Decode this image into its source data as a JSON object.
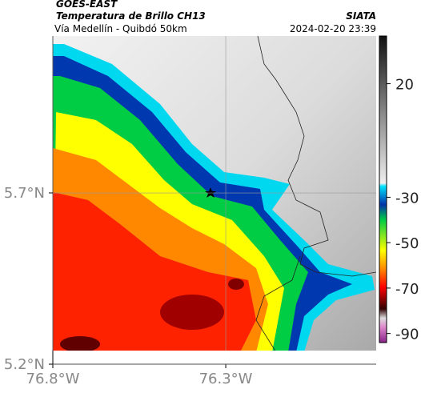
{
  "header": {
    "source": "GOES-EAST",
    "product": "Temperatura de Brillo CH13",
    "region": "Vía Medellín - Quibdó 50km",
    "agency": "SIATA",
    "timestamp": "2024-02-20 23:39"
  },
  "map": {
    "xlim": [
      -76.8,
      -75.865
    ],
    "ylim": [
      5.2,
      6.158
    ],
    "xticks": [
      {
        "value": -76.8,
        "label": "76.8°W"
      },
      {
        "value": -76.3,
        "label": "76.3°W"
      }
    ],
    "yticks": [
      {
        "value": 5.2,
        "label": "5.2°N"
      },
      {
        "value": 5.7,
        "label": "5.7°N"
      }
    ],
    "grid": true
  },
  "colorbar": {
    "clim": [
      -94,
      41
    ],
    "ticks": [
      20,
      -30,
      -50,
      -70,
      -90
    ]
  }
}
